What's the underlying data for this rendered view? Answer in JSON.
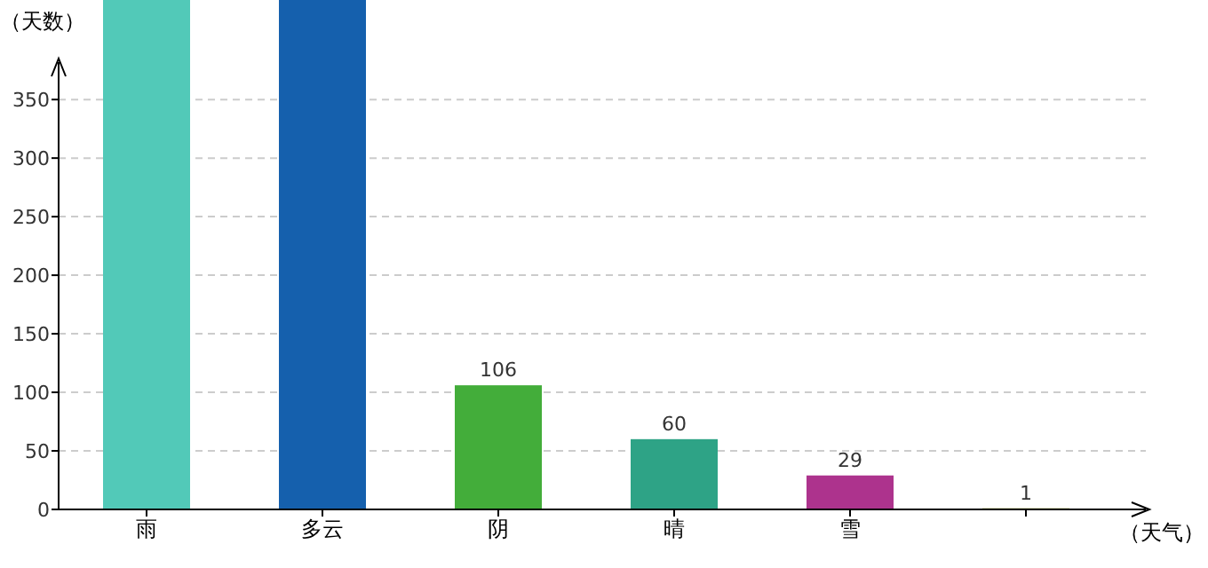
{
  "chart_data": {
    "type": "bar",
    "xlabel": "（天气）",
    "ylabel": "（天数）",
    "categories": [
      "雨",
      "多云",
      "阴",
      "晴",
      "雪",
      null
    ],
    "values": [
      435,
      435,
      106,
      60,
      29,
      1
    ],
    "colors": [
      "#52c9b8",
      "#1560ad",
      "#43ad3a",
      "#2ea386",
      "#ad338d",
      "#9aa23a"
    ],
    "value_labels": [
      null,
      null,
      "106",
      "60",
      "29",
      "1"
    ],
    "ylim": [
      0,
      435
    ],
    "yticks": [
      0,
      50,
      100,
      150,
      200,
      250,
      300,
      350
    ],
    "grid": "y"
  }
}
